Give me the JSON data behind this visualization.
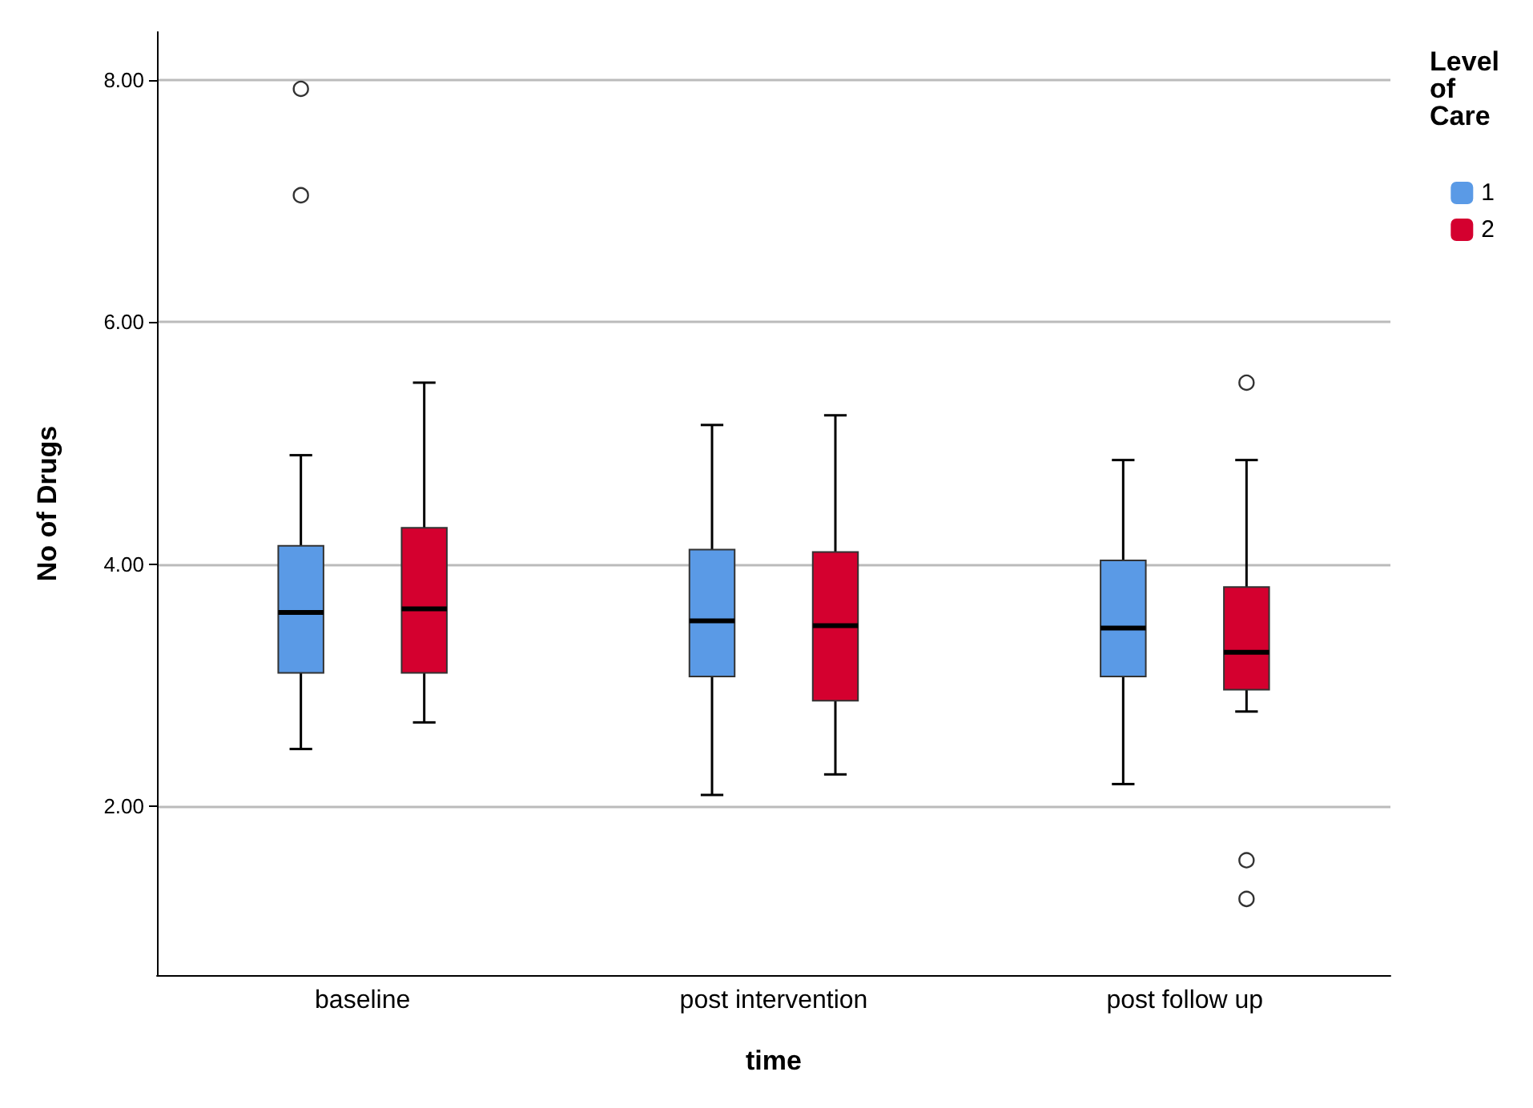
{
  "chart_data": {
    "type": "box",
    "xlabel": "time",
    "ylabel": "No of Drugs",
    "legend_title": "Level of Care",
    "legend": "top right",
    "grid": "y",
    "categories": [
      "baseline",
      "post intervention",
      "post follow up"
    ],
    "ylim": [
      0.6,
      8.4
    ],
    "yticks": [
      {
        "value": 2,
        "label": "2.00"
      },
      {
        "value": 4,
        "label": "4.00"
      },
      {
        "value": 6,
        "label": "6.00"
      },
      {
        "value": 8,
        "label": "8.00"
      }
    ],
    "series": [
      {
        "name": "1",
        "color": "#5a9ae6",
        "boxes": [
          {
            "low": 2.47,
            "q1": 3.1,
            "median": 3.6,
            "q3": 4.15,
            "high": 4.9,
            "outliers": [
              7.05,
              7.93
            ]
          },
          {
            "low": 2.09,
            "q1": 3.07,
            "median": 3.53,
            "q3": 4.12,
            "high": 5.15
          },
          {
            "low": 2.18,
            "q1": 3.07,
            "median": 3.47,
            "q3": 4.03,
            "high": 4.86
          }
        ]
      },
      {
        "name": "2",
        "color": "#d4002f",
        "boxes": [
          {
            "low": 2.69,
            "q1": 3.1,
            "median": 3.63,
            "q3": 4.3,
            "high": 5.5
          },
          {
            "low": 2.26,
            "q1": 2.87,
            "median": 3.49,
            "q3": 4.1,
            "high": 5.23
          },
          {
            "low": 2.78,
            "q1": 2.96,
            "median": 3.27,
            "q3": 3.81,
            "high": 4.86,
            "outliers": [
              5.5,
              1.55,
              1.23
            ]
          }
        ]
      }
    ]
  }
}
